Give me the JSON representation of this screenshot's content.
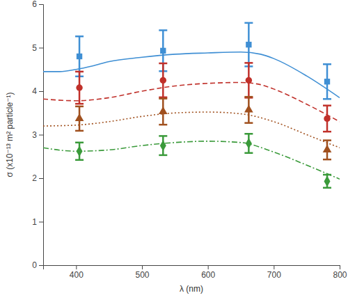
{
  "chart_data": {
    "type": "scatter",
    "x_label": "λ (nm)",
    "y_label": "σ (x10⁻¹³ m² particle⁻¹)",
    "xlim": [
      350,
      800
    ],
    "xticks": [
      400,
      500,
      600,
      700,
      800
    ],
    "ylim": [
      0,
      6
    ],
    "yticks": [
      0,
      1,
      2,
      3,
      4,
      5,
      6
    ],
    "series": [
      {
        "type": "scatter",
        "marker": "square",
        "color": "#3f8fd4",
        "x": [
          405,
          532,
          662,
          781
        ],
        "values": [
          4.8,
          4.93,
          5.07,
          4.22
        ],
        "errors": [
          0.46,
          0.47,
          0.5,
          0.4
        ]
      },
      {
        "type": "scatter",
        "marker": "circle",
        "color": "#c0302a",
        "x": [
          405,
          532,
          662,
          781
        ],
        "values": [
          4.08,
          4.25,
          4.25,
          3.37
        ],
        "errors": [
          0.37,
          0.39,
          0.4,
          0.3
        ]
      },
      {
        "type": "scatter",
        "marker": "triangle",
        "color": "#a0501e",
        "x": [
          405,
          532,
          662,
          781
        ],
        "values": [
          3.37,
          3.53,
          3.57,
          2.65
        ],
        "errors": [
          0.28,
          0.3,
          0.3,
          0.22
        ]
      },
      {
        "type": "scatter",
        "marker": "diamond",
        "color": "#3a9a3a",
        "x": [
          405,
          532,
          662,
          781
        ],
        "values": [
          2.62,
          2.75,
          2.8,
          1.93
        ],
        "errors": [
          0.2,
          0.22,
          0.22,
          0.15
        ]
      },
      {
        "type": "line",
        "line_style": "solid",
        "color": "#3f8fd4",
        "x": [
          350,
          375,
          400,
          425,
          450,
          500,
          550,
          600,
          650,
          680,
          700,
          750,
          800
        ],
        "values": [
          4.45,
          4.45,
          4.5,
          4.58,
          4.68,
          4.78,
          4.85,
          4.88,
          4.9,
          4.85,
          4.75,
          4.35,
          3.85
        ]
      },
      {
        "type": "line",
        "line_style": "dashed",
        "color": "#c0302a",
        "x": [
          350,
          400,
          450,
          500,
          550,
          600,
          650,
          680,
          700,
          750,
          800
        ],
        "values": [
          3.82,
          3.78,
          3.85,
          4.0,
          4.12,
          4.18,
          4.2,
          4.15,
          4.05,
          3.7,
          3.3
        ]
      },
      {
        "type": "line",
        "line_style": "dotted",
        "color": "#a0501e",
        "x": [
          350,
          400,
          450,
          500,
          550,
          600,
          650,
          700,
          750,
          800
        ],
        "values": [
          3.2,
          3.22,
          3.3,
          3.42,
          3.5,
          3.52,
          3.48,
          3.3,
          3.0,
          2.7
        ]
      },
      {
        "type": "line",
        "line_style": "dashdot",
        "color": "#3a9a3a",
        "x": [
          350,
          400,
          450,
          500,
          550,
          600,
          650,
          700,
          750,
          800
        ],
        "values": [
          2.7,
          2.62,
          2.65,
          2.75,
          2.82,
          2.85,
          2.82,
          2.6,
          2.3,
          1.98
        ]
      }
    ]
  }
}
